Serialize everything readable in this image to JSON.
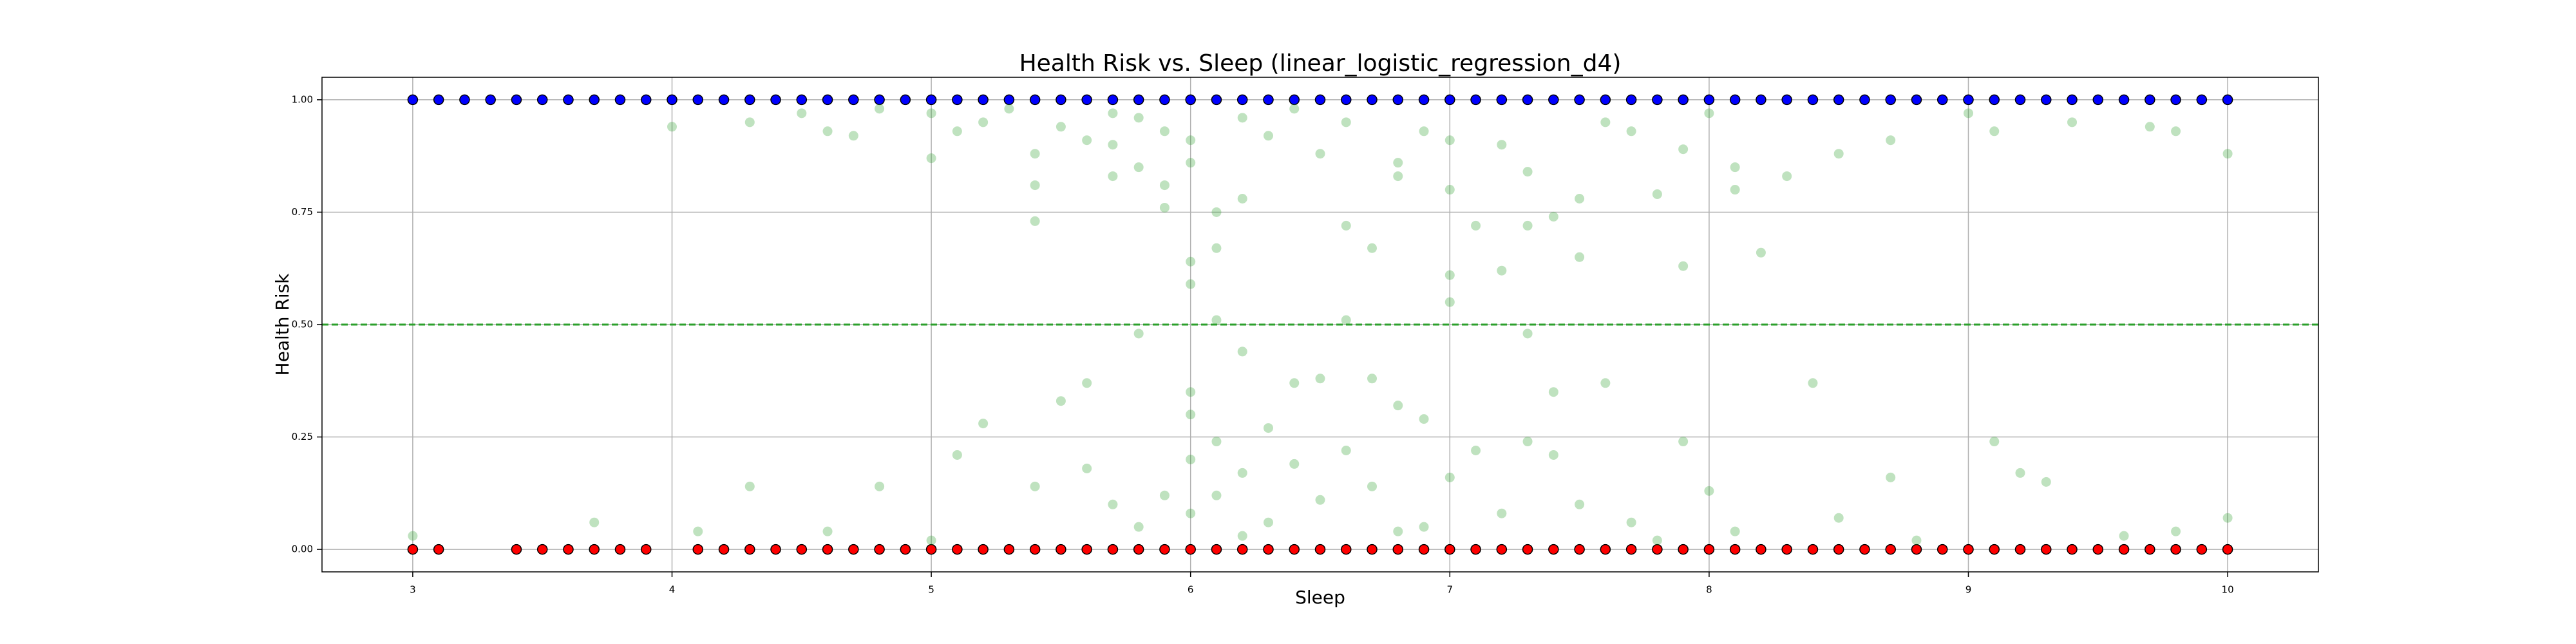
{
  "chart_data": {
    "type": "scatter",
    "title": "Health Risk vs. Sleep (linear_logistic_regression_d4)",
    "xlabel": "Sleep",
    "ylabel": "Health Risk",
    "xlim": [
      2.65,
      10.35
    ],
    "ylim": [
      -0.05,
      1.05
    ],
    "xticks": [
      3,
      4,
      5,
      6,
      7,
      8,
      9,
      10
    ],
    "yticks": [
      {
        "value": 0,
        "label": "0.00"
      },
      {
        "value": 0.25,
        "label": "0.25"
      },
      {
        "value": 0.5,
        "label": "0.50"
      },
      {
        "value": 0.75,
        "label": "0.75"
      },
      {
        "value": 1,
        "label": "1.00"
      }
    ],
    "grid": true,
    "hline": {
      "value": 0.5,
      "color": "#2ca02c"
    },
    "series": [
      {
        "color": "#0000ff",
        "edgecolor": "#000000",
        "alpha": 1,
        "x": [
          3,
          3.1,
          3.2,
          3.3,
          3.4,
          3.5,
          3.6,
          3.7,
          3.8,
          3.9,
          4,
          4.1,
          4.2,
          4.3,
          4.4,
          4.5,
          4.6,
          4.7,
          4.8,
          4.9,
          5,
          5.1,
          5.2,
          5.3,
          5.4,
          5.5,
          5.6,
          5.7,
          5.8,
          5.9,
          6,
          6.1,
          6.2,
          6.3,
          6.4,
          6.5,
          6.6,
          6.7,
          6.8,
          6.9,
          7,
          7.1,
          7.2,
          7.3,
          7.4,
          7.5,
          7.6,
          7.7,
          7.8,
          7.9,
          8,
          8.1,
          8.2,
          8.3,
          8.4,
          8.5,
          8.6,
          8.7,
          8.8,
          8.9,
          9,
          9.1,
          9.2,
          9.3,
          9.4,
          9.5,
          9.6,
          9.7,
          9.8,
          9.9,
          10
        ],
        "values": [
          1,
          1,
          1,
          1,
          1,
          1,
          1,
          1,
          1,
          1,
          1,
          1,
          1,
          1,
          1,
          1,
          1,
          1,
          1,
          1,
          1,
          1,
          1,
          1,
          1,
          1,
          1,
          1,
          1,
          1,
          1,
          1,
          1,
          1,
          1,
          1,
          1,
          1,
          1,
          1,
          1,
          1,
          1,
          1,
          1,
          1,
          1,
          1,
          1,
          1,
          1,
          1,
          1,
          1,
          1,
          1,
          1,
          1,
          1,
          1,
          1,
          1,
          1,
          1,
          1,
          1,
          1,
          1,
          1,
          1,
          1
        ]
      },
      {
        "color": "#ff0000",
        "edgecolor": "#000000",
        "alpha": 1,
        "x": [
          3,
          3.1,
          3.4,
          3.5,
          3.6,
          3.7,
          3.8,
          3.9,
          4.1,
          4.2,
          4.3,
          4.4,
          4.5,
          4.6,
          4.7,
          4.8,
          4.9,
          5,
          5.1,
          5.2,
          5.3,
          5.4,
          5.5,
          5.6,
          5.7,
          5.8,
          5.9,
          6,
          6.1,
          6.2,
          6.3,
          6.4,
          6.5,
          6.6,
          6.7,
          6.8,
          6.9,
          7,
          7.1,
          7.2,
          7.3,
          7.4,
          7.5,
          7.6,
          7.7,
          7.8,
          7.9,
          8,
          8.1,
          8.2,
          8.3,
          8.4,
          8.5,
          8.6,
          8.7,
          8.8,
          8.9,
          9,
          9.1,
          9.2,
          9.3,
          9.4,
          9.5,
          9.6,
          9.7,
          9.8,
          9.9,
          10
        ],
        "values": [
          0,
          0,
          0,
          0,
          0,
          0,
          0,
          0,
          0,
          0,
          0,
          0,
          0,
          0,
          0,
          0,
          0,
          0,
          0,
          0,
          0,
          0,
          0,
          0,
          0,
          0,
          0,
          0,
          0,
          0,
          0,
          0,
          0,
          0,
          0,
          0,
          0,
          0,
          0,
          0,
          0,
          0,
          0,
          0,
          0,
          0,
          0,
          0,
          0,
          0,
          0,
          0,
          0,
          0,
          0,
          0,
          0,
          0,
          0,
          0,
          0,
          0,
          0,
          0,
          0,
          0,
          0,
          0
        ]
      },
      {
        "color": "#2ca02c",
        "alpha": 0.3,
        "x": [
          4.0,
          4.3,
          4.5,
          4.6,
          4.7,
          4.8,
          5.0,
          5.0,
          5.1,
          5.2,
          5.3,
          5.4,
          5.4,
          5.4,
          5.5,
          5.6,
          5.7,
          5.7,
          5.7,
          5.8,
          5.8,
          5.9,
          5.9,
          5.9,
          6.0,
          6.0,
          6.0,
          6.0,
          6.1,
          6.1,
          6.2,
          6.2,
          6.3,
          6.4,
          6.5,
          6.6,
          6.6,
          6.7,
          6.8,
          6.8,
          6.9,
          7.0,
          7.0,
          7.0,
          7.1,
          7.2,
          7.2,
          7.3,
          7.3,
          7.4,
          7.5,
          7.5,
          7.6,
          7.7,
          7.8,
          7.9,
          7.9,
          8.0,
          8.1,
          8.1,
          8.2,
          8.3,
          8.5,
          8.7,
          9.0,
          9.1,
          9.4,
          9.7,
          9.8,
          10.0,
          5.6,
          5.8,
          6.0,
          6.1,
          6.2,
          6.4,
          6.6,
          6.7,
          7.0,
          7.3,
          7.4,
          3.0,
          3.7,
          4.1,
          4.3,
          4.6,
          4.8,
          5.1,
          5.2,
          5.4,
          5.5,
          5.6,
          5.7,
          5.8,
          5.9,
          6.0,
          6.0,
          6.0,
          6.1,
          6.1,
          6.2,
          6.3,
          6.3,
          6.4,
          6.5,
          6.5,
          6.6,
          6.7,
          6.8,
          6.8,
          6.9,
          7.0,
          7.1,
          7.2,
          7.3,
          7.4,
          7.5,
          7.6,
          7.7,
          7.9,
          8.0,
          8.1,
          8.4,
          8.5,
          8.7,
          9.1,
          9.2,
          9.3,
          9.6,
          9.8,
          10.0,
          5.0,
          6.2,
          6.9,
          7.8,
          8.8
        ],
        "values": [
          0.94,
          0.95,
          0.97,
          0.93,
          0.92,
          0.98,
          0.87,
          0.97,
          0.93,
          0.95,
          0.98,
          0.81,
          0.73,
          0.88,
          0.94,
          0.91,
          0.97,
          0.83,
          0.9,
          0.85,
          0.96,
          0.81,
          0.76,
          0.93,
          0.91,
          0.86,
          0.64,
          0.59,
          0.75,
          0.67,
          0.96,
          0.78,
          0.92,
          0.98,
          0.88,
          0.95,
          0.72,
          0.67,
          0.86,
          0.83,
          0.93,
          0.8,
          0.91,
          0.61,
          0.72,
          0.9,
          0.62,
          0.84,
          0.72,
          0.74,
          0.78,
          0.65,
          0.95,
          0.93,
          0.79,
          0.63,
          0.89,
          0.97,
          0.85,
          0.8,
          0.66,
          0.83,
          0.88,
          0.91,
          0.97,
          0.93,
          0.95,
          0.94,
          0.93,
          0.88,
          0.37,
          0.48,
          0.35,
          0.51,
          0.44,
          0.37,
          0.51,
          0.38,
          0.55,
          0.48,
          0.35,
          0.03,
          0.06,
          0.04,
          0.14,
          0.04,
          0.14,
          0.21,
          0.28,
          0.14,
          0.33,
          0.18,
          0.1,
          0.05,
          0.12,
          0.3,
          0.2,
          0.08,
          0.24,
          0.12,
          0.17,
          0.27,
          0.06,
          0.19,
          0.38,
          0.11,
          0.22,
          0.14,
          0.32,
          0.04,
          0.29,
          0.16,
          0.22,
          0.08,
          0.24,
          0.21,
          0.1,
          0.37,
          0.06,
          0.24,
          0.13,
          0.04,
          0.37,
          0.07,
          0.16,
          0.24,
          0.17,
          0.15,
          0.03,
          0.04,
          0.07,
          0.02,
          0.03,
          0.05,
          0.02,
          0.02
        ]
      }
    ]
  }
}
